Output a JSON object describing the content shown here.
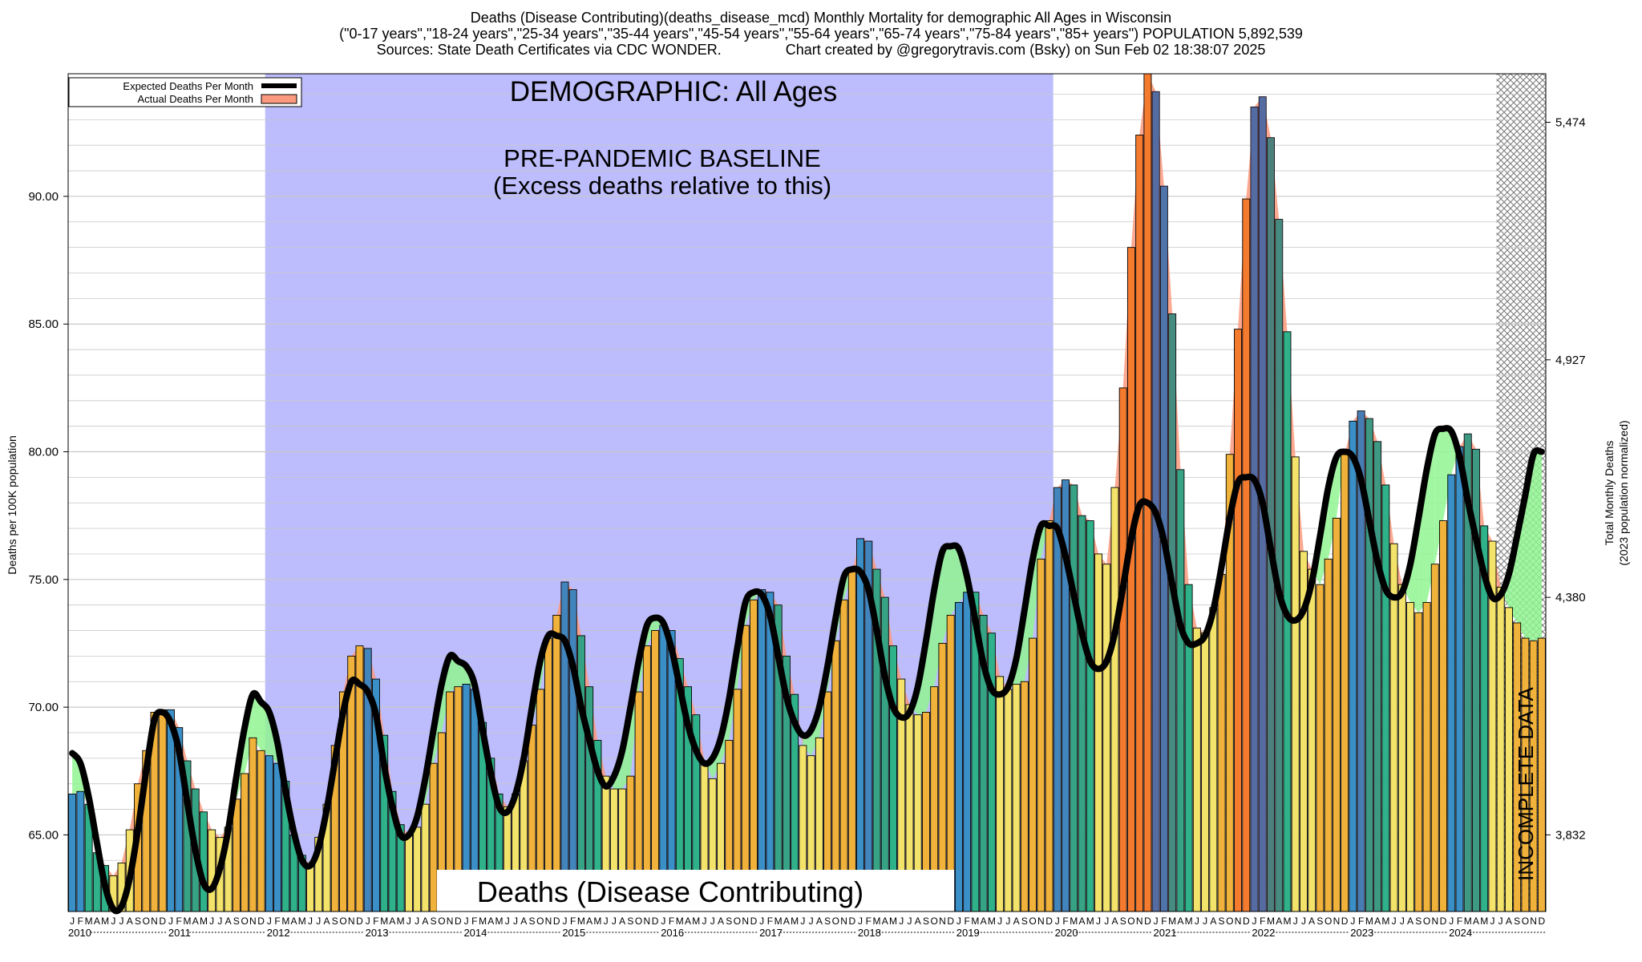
{
  "header": {
    "title_line1": "Deaths (Disease Contributing)(deaths_disease_mcd) Monthly Mortality for demographic All Ages in Wisconsin",
    "title_line2": "(\"0-17 years\",\"18-24 years\",\"25-34 years\",\"35-44 years\",\"45-54 years\",\"55-64 years\",\"65-74 years\",\"75-84 years\",\"85+ years\") POPULATION 5,892,539",
    "title_line3": "Sources: State Death Certificates via CDC WONDER.                Chart created by @gregorytravis.com (Bsky) on Sun Feb 02 18:38:07 2025"
  },
  "colors": {
    "baseline_band": "#bdbdfd",
    "expected_line": "#000000",
    "excess_fill": "#fb9a7e",
    "deficit_fill": "#90f590",
    "incomplete_hatch": "#777777"
  },
  "chart_data": {
    "type": "bar",
    "ylabel_left": "Deaths per 100K population",
    "ylabel_right_line1": "Total Monthly Deaths",
    "ylabel_right_line2": "(2023 population normalized)",
    "ylim": [
      62.0,
      94.8
    ],
    "left_ticks": [
      "65.00",
      "70.00",
      "75.00",
      "80.00",
      "85.00",
      "90.00"
    ],
    "left_tick_values": [
      65,
      70,
      75,
      80,
      85,
      90
    ],
    "right_ticks": [
      "3,832",
      "4,380",
      "4,927",
      "5,474"
    ],
    "right_tick_values": [
      65.0,
      74.3,
      83.6,
      92.9
    ],
    "grid": true,
    "legend": {
      "position": "top-left",
      "entries": [
        "Expected Deaths Per Month",
        "Actual Deaths Per Month"
      ]
    },
    "annotations": {
      "demographic": "DEMOGRAPHIC: All Ages",
      "baseline_line1": "PRE-PANDEMIC BASELINE",
      "baseline_line2": "(Excess deaths relative to this)",
      "bottom_label": "Deaths (Disease Contributing)",
      "incomplete": "INCOMPLETE DATA"
    },
    "baseline_range": [
      "2012-01",
      "2019-12"
    ],
    "incomplete_from": "2024-07",
    "month_letters": [
      "J",
      "F",
      "M",
      "A",
      "M",
      "J",
      "J",
      "A",
      "S",
      "O",
      "N",
      "D"
    ],
    "years": [
      "2010",
      "2011",
      "2012",
      "2013",
      "2014",
      "2015",
      "2016",
      "2017",
      "2018",
      "2019",
      "2020",
      "2021",
      "2022",
      "2023",
      "2024"
    ],
    "start": "2010-01",
    "actual": [
      66.6,
      66.7,
      66.2,
      64.3,
      63.8,
      63.4,
      63.9,
      65.2,
      67.0,
      68.3,
      69.8,
      69.9,
      69.9,
      69.2,
      67.9,
      66.8,
      65.9,
      65.2,
      64.9,
      65.3,
      66.4,
      67.4,
      68.8,
      68.3,
      68.1,
      67.8,
      67.1,
      65.0,
      64.2,
      63.8,
      64.9,
      66.2,
      68.5,
      70.6,
      72.0,
      72.4,
      72.3,
      71.1,
      68.9,
      66.7,
      65.4,
      65.0,
      65.3,
      66.2,
      67.8,
      69.0,
      70.6,
      70.8,
      70.9,
      70.7,
      69.4,
      68.0,
      66.6,
      66.1,
      66.6,
      67.9,
      69.3,
      70.7,
      72.7,
      73.6,
      74.9,
      74.6,
      72.8,
      70.8,
      68.7,
      67.3,
      66.8,
      66.8,
      67.3,
      70.6,
      72.4,
      73.0,
      73.2,
      73.0,
      71.9,
      70.8,
      69.7,
      67.9,
      67.2,
      67.8,
      68.7,
      70.7,
      73.2,
      74.2,
      74.6,
      74.5,
      74.0,
      72.0,
      70.5,
      68.5,
      68.1,
      68.8,
      70.6,
      72.6,
      74.2,
      75.3,
      76.6,
      76.5,
      75.4,
      74.3,
      72.4,
      71.1,
      70.1,
      69.7,
      69.8,
      70.8,
      72.5,
      73.6,
      74.1,
      74.5,
      74.5,
      73.6,
      72.9,
      71.2,
      70.7,
      70.9,
      71.0,
      72.7,
      75.8,
      77.3,
      78.6,
      78.9,
      78.7,
      77.5,
      77.3,
      76.0,
      75.6,
      78.6,
      82.5,
      88.0,
      92.4,
      94.8,
      94.1,
      90.4,
      85.4,
      79.3,
      74.8,
      73.1,
      72.9,
      73.9,
      75.2,
      79.9,
      84.8,
      89.9,
      93.5,
      93.9,
      92.3,
      89.1,
      84.7,
      79.8,
      76.1,
      75.4,
      74.8,
      75.8,
      77.4,
      79.9,
      81.2,
      81.6,
      81.3,
      80.4,
      78.7,
      76.4,
      74.8,
      74.1,
      73.7,
      74.1,
      75.6,
      77.3,
      79.1,
      80.2,
      80.7,
      80.1,
      77.1,
      76.5,
      74.7,
      73.9,
      73.3,
      72.7,
      72.6,
      72.7
    ],
    "expected": [
      68.2,
      67.8,
      66.5,
      64.7,
      63.0,
      62.1,
      62.2,
      63.3,
      65.2,
      67.5,
      69.5,
      69.8,
      69.4,
      68.3,
      66.3,
      64.4,
      63.1,
      62.9,
      63.7,
      65.2,
      67.3,
      69.2,
      70.5,
      70.2,
      69.8,
      68.6,
      66.7,
      65.1,
      64.0,
      63.8,
      64.5,
      66.0,
      67.9,
      69.8,
      71.0,
      70.9,
      70.6,
      69.7,
      67.7,
      66.1,
      65.0,
      65.0,
      65.7,
      67.2,
      69.1,
      70.9,
      72.0,
      71.8,
      71.6,
      70.9,
      69.1,
      67.4,
      66.1,
      65.9,
      66.6,
      68.0,
      70.0,
      71.8,
      72.8,
      72.8,
      72.6,
      71.6,
      70.0,
      68.7,
      67.5,
      66.9,
      67.3,
      68.3,
      70.0,
      71.8,
      73.2,
      73.5,
      73.3,
      72.3,
      70.8,
      69.3,
      68.3,
      67.8,
      68.0,
      68.8,
      70.3,
      72.3,
      74.1,
      74.5,
      74.4,
      73.6,
      72.0,
      70.4,
      69.4,
      68.9,
      69.1,
      70.0,
      71.6,
      73.5,
      75.1,
      75.4,
      75.3,
      74.6,
      73.0,
      71.2,
      70.0,
      69.6,
      69.8,
      70.8,
      72.6,
      74.6,
      76.1,
      76.3,
      76.2,
      75.1,
      73.4,
      71.7,
      70.7,
      70.5,
      70.8,
      71.9,
      73.8,
      75.8,
      77.1,
      77.1,
      77.0,
      75.9,
      74.4,
      72.9,
      71.8,
      71.5,
      71.8,
      72.9,
      74.7,
      76.6,
      77.9,
      78.0,
      77.6,
      76.5,
      74.8,
      73.2,
      72.5,
      72.5,
      72.8,
      73.8,
      75.5,
      77.4,
      78.8,
      79.0,
      78.9,
      78.0,
      76.2,
      74.5,
      73.6,
      73.4,
      73.8,
      74.9,
      76.7,
      78.6,
      79.8,
      80.0,
      79.8,
      78.9,
      77.3,
      75.7,
      74.6,
      74.3,
      74.5,
      75.6,
      77.4,
      79.3,
      80.7,
      80.9,
      80.8,
      79.8,
      78.1,
      76.6,
      75.2,
      74.3,
      74.4,
      75.2,
      76.7,
      78.3,
      79.9,
      80.0
    ]
  }
}
